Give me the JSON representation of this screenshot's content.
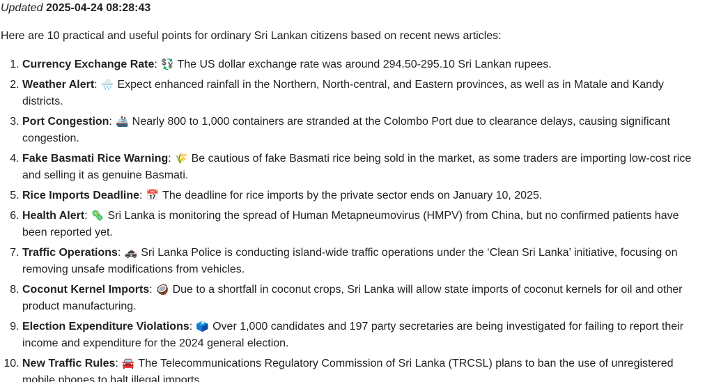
{
  "header": {
    "updated_label": "Updated",
    "timestamp": "2025-04-24 08:28:43"
  },
  "intro": "Here are 10 practical and useful points for ordinary Sri Lankan citizens based on recent news articles:",
  "points": [
    {
      "number": 1,
      "title": "Currency Exchange Rate",
      "icon": "💱",
      "icon_name": "currency-exchange-icon",
      "text": "The US dollar exchange rate was around 294.50-295.10 Sri Lankan rupees."
    },
    {
      "number": 2,
      "title": "Weather Alert",
      "icon": "🌧️",
      "icon_name": "rain-cloud-icon",
      "text": "Expect enhanced rainfall in the Northern, North-central, and Eastern provinces, as well as in Matale and Kandy districts."
    },
    {
      "number": 3,
      "title": "Port Congestion",
      "icon": "🚢",
      "icon_name": "ship-icon",
      "text": "Nearly 800 to 1,000 containers are stranded at the Colombo Port due to clearance delays, causing significant congestion."
    },
    {
      "number": 4,
      "title": "Fake Basmati Rice Warning",
      "icon": "🌾",
      "icon_name": "rice-sheaf-icon",
      "text": "Be cautious of fake Basmati rice being sold in the market, as some traders are importing low-cost rice and selling it as genuine Basmati."
    },
    {
      "number": 5,
      "title": "Rice Imports Deadline",
      "icon": "📅",
      "icon_name": "calendar-icon",
      "text": "The deadline for rice imports by the private sector ends on January 10, 2025."
    },
    {
      "number": 6,
      "title": "Health Alert",
      "icon": "🦠",
      "icon_name": "microbe-icon",
      "text": "Sri Lanka is monitoring the spread of Human Metapneumovirus (HMPV) from China, but no confirmed patients have been reported yet."
    },
    {
      "number": 7,
      "title": "Traffic Operations",
      "icon": "🚓",
      "icon_name": "police-car-icon",
      "text": "Sri Lanka Police is conducting island-wide traffic operations under the ‘Clean Sri Lanka’ initiative, focusing on removing unsafe modifications from vehicles."
    },
    {
      "number": 8,
      "title": "Coconut Kernel Imports",
      "icon": "🥥",
      "icon_name": "coconut-icon",
      "text": "Due to a shortfall in coconut crops, Sri Lanka will allow state imports of coconut kernels for oil and other product manufacturing."
    },
    {
      "number": 9,
      "title": "Election Expenditure Violations",
      "icon": "🗳️",
      "icon_name": "ballot-box-icon",
      "text": "Over 1,000 candidates and 197 party secretaries are being investigated for failing to report their income and expenditure for the 2024 general election."
    },
    {
      "number": 10,
      "title": "New Traffic Rules",
      "icon": "🚘",
      "icon_name": "car-icon",
      "text": "The Telecommunications Regulatory Commission of Sri Lanka (TRCSL) plans to ban the use of unregistered mobile phones to halt illegal imports."
    }
  ]
}
